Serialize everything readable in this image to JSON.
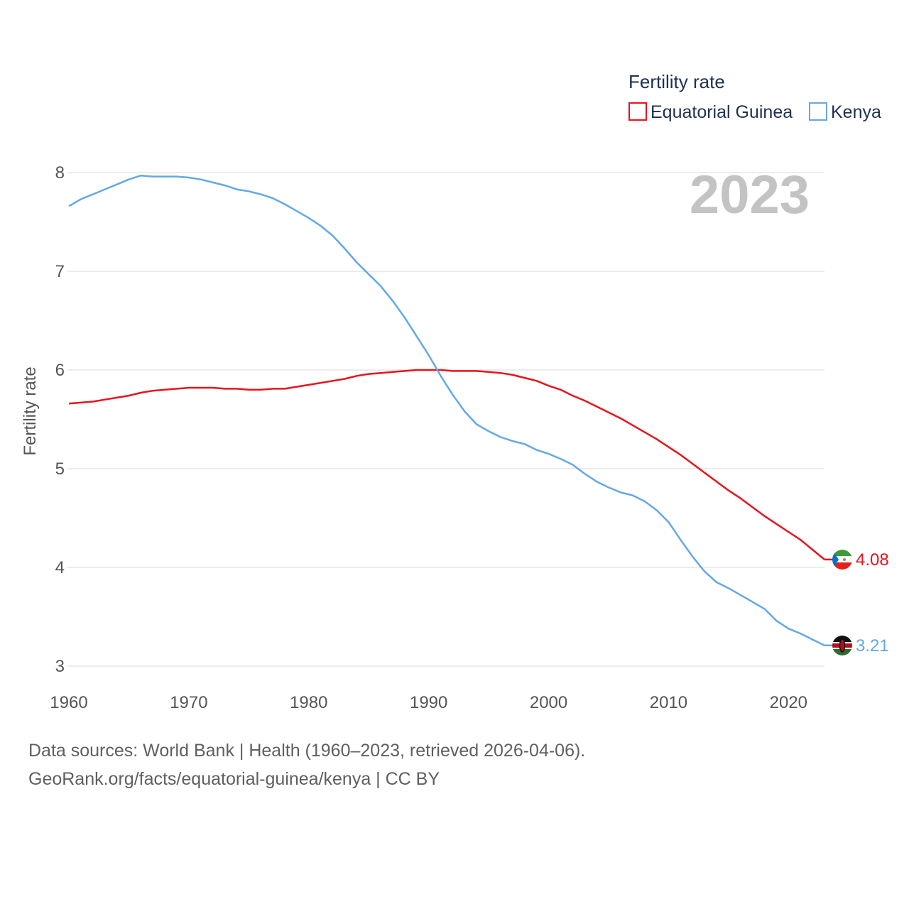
{
  "chart_data": {
    "type": "line",
    "title": "",
    "ylabel": "Fertility rate",
    "xlabel": "",
    "legend_title": "Fertility rate",
    "legend_position": "top-right",
    "year_watermark": "2023",
    "xlim": [
      1960,
      2023
    ],
    "ylim": [
      3,
      8
    ],
    "x_ticks": [
      1960,
      1970,
      1980,
      1990,
      2000,
      2010,
      2020
    ],
    "y_ticks": [
      3,
      4,
      5,
      6,
      7,
      8
    ],
    "grid": true,
    "x": [
      1960,
      1961,
      1962,
      1963,
      1964,
      1965,
      1966,
      1967,
      1968,
      1969,
      1970,
      1971,
      1972,
      1973,
      1974,
      1975,
      1976,
      1977,
      1978,
      1979,
      1980,
      1981,
      1982,
      1983,
      1984,
      1985,
      1986,
      1987,
      1988,
      1989,
      1990,
      1991,
      1992,
      1993,
      1994,
      1995,
      1996,
      1997,
      1998,
      1999,
      2000,
      2001,
      2002,
      2003,
      2004,
      2005,
      2006,
      2007,
      2008,
      2009,
      2010,
      2011,
      2012,
      2013,
      2014,
      2015,
      2016,
      2017,
      2018,
      2019,
      2020,
      2021,
      2022,
      2023
    ],
    "series": [
      {
        "name": "Equatorial Guinea",
        "color": "#e8141c",
        "end_label": "4.08",
        "values": [
          5.66,
          5.67,
          5.68,
          5.7,
          5.72,
          5.74,
          5.77,
          5.79,
          5.8,
          5.81,
          5.82,
          5.82,
          5.82,
          5.81,
          5.81,
          5.8,
          5.8,
          5.81,
          5.81,
          5.83,
          5.85,
          5.87,
          5.89,
          5.91,
          5.94,
          5.96,
          5.97,
          5.98,
          5.99,
          6.0,
          6.0,
          6.0,
          5.99,
          5.99,
          5.99,
          5.98,
          5.97,
          5.95,
          5.92,
          5.89,
          5.84,
          5.8,
          5.74,
          5.69,
          5.63,
          5.57,
          5.51,
          5.44,
          5.37,
          5.3,
          5.22,
          5.14,
          5.05,
          4.96,
          4.87,
          4.78,
          4.7,
          4.61,
          4.52,
          4.44,
          4.36,
          4.28,
          4.18,
          4.08
        ]
      },
      {
        "name": "Kenya",
        "color": "#64a8e6",
        "end_label": "3.21",
        "values": [
          7.66,
          7.73,
          7.78,
          7.83,
          7.88,
          7.93,
          7.97,
          7.96,
          7.96,
          7.96,
          7.95,
          7.93,
          7.9,
          7.87,
          7.83,
          7.81,
          7.78,
          7.74,
          7.68,
          7.61,
          7.54,
          7.46,
          7.36,
          7.23,
          7.09,
          6.97,
          6.85,
          6.7,
          6.53,
          6.34,
          6.15,
          5.94,
          5.75,
          5.58,
          5.45,
          5.38,
          5.32,
          5.28,
          5.25,
          5.19,
          5.15,
          5.1,
          5.04,
          4.95,
          4.87,
          4.81,
          4.76,
          4.73,
          4.67,
          4.58,
          4.46,
          4.28,
          4.11,
          3.96,
          3.85,
          3.79,
          3.72,
          3.65,
          3.58,
          3.46,
          3.38,
          3.33,
          3.27,
          3.21
        ]
      }
    ]
  },
  "footer": {
    "source_line": "Data sources: World Bank | Health (1960–2023, retrieved 2026-04-06).",
    "url_line": "GeoRank.org/facts/equatorial-guinea/kenya | CC BY"
  }
}
